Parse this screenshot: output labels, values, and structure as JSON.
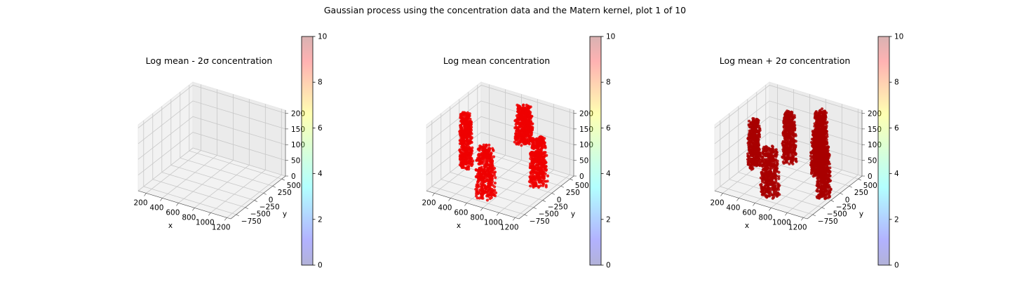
{
  "figure": {
    "suptitle": "Gaussian process using the  concentration data and the Matern kernel, plot 1 of 10"
  },
  "chart_data": [
    {
      "type": "scatter3d",
      "title": "Log mean - 2σ concentration",
      "xlabel": "x",
      "ylabel": "y",
      "zlabel": "",
      "x_ticks": [
        "200",
        "400",
        "600",
        "800",
        "1000",
        "1200"
      ],
      "y_ticks": [
        "−750",
        "−500",
        "−250",
        "0",
        "250",
        "500"
      ],
      "z_ticks": [
        "0",
        "50",
        "100",
        "150",
        "200"
      ],
      "colorbar": {
        "min": 0,
        "max": 10,
        "ticks": [
          "0",
          "2",
          "4",
          "6",
          "8",
          "10"
        ],
        "colormap": "jet"
      },
      "point_color": null,
      "clusters": []
    },
    {
      "type": "scatter3d",
      "title": "Log mean concentration",
      "xlabel": "x",
      "ylabel": "y",
      "zlabel": "",
      "x_ticks": [
        "200",
        "400",
        "600",
        "800",
        "1000",
        "1200"
      ],
      "y_ticks": [
        "−750",
        "−500",
        "−250",
        "0",
        "250",
        "500"
      ],
      "z_ticks": [
        "0",
        "50",
        "100",
        "150",
        "200"
      ],
      "colorbar": {
        "min": 0,
        "max": 10,
        "ticks": [
          "0",
          "2",
          "4",
          "6",
          "8",
          "10"
        ],
        "colormap": "jet"
      },
      "point_color": "#ee0000",
      "clusters": [
        {
          "x": 250,
          "y": -150,
          "z": [
            20,
            190
          ],
          "rx": 70,
          "ry": 120
        },
        {
          "x": 700,
          "y": -600,
          "z": [
            0,
            160
          ],
          "rx": 120,
          "ry": 120
        },
        {
          "x": 720,
          "y": 400,
          "z": [
            80,
            200
          ],
          "rx": 110,
          "ry": 110
        },
        {
          "x": 1150,
          "y": -150,
          "z": [
            30,
            180
          ],
          "rx": 100,
          "ry": 140
        }
      ]
    },
    {
      "type": "scatter3d",
      "title": "Log mean + 2σ concentration",
      "xlabel": "x",
      "ylabel": "y",
      "zlabel": "",
      "x_ticks": [
        "200",
        "400",
        "600",
        "800",
        "1000",
        "1200"
      ],
      "y_ticks": [
        "−750",
        "−500",
        "−250",
        "0",
        "250",
        "500"
      ],
      "z_ticks": [
        "0",
        "50",
        "100",
        "150",
        "200"
      ],
      "colorbar": {
        "min": 0,
        "max": 10,
        "ticks": [
          "0",
          "2",
          "4",
          "6",
          "8",
          "10"
        ],
        "colormap": "jet"
      },
      "point_color": "#a80000",
      "clusters": [
        {
          "x": 250,
          "y": -150,
          "z": [
            20,
            170
          ],
          "rx": 70,
          "ry": 110
        },
        {
          "x": 650,
          "y": -600,
          "z": [
            0,
            150
          ],
          "rx": 110,
          "ry": 110
        },
        {
          "x": 550,
          "y": 150,
          "z": [
            30,
            190
          ],
          "rx": 80,
          "ry": 90
        },
        {
          "x": 850,
          "y": 350,
          "z": [
            40,
            200
          ],
          "rx": 90,
          "ry": 100
        },
        {
          "x": 1000,
          "y": -50,
          "z": [
            40,
            190
          ],
          "rx": 80,
          "ry": 120
        },
        {
          "x": 1180,
          "y": -300,
          "z": [
            10,
            170
          ],
          "rx": 80,
          "ry": 100
        }
      ]
    }
  ]
}
